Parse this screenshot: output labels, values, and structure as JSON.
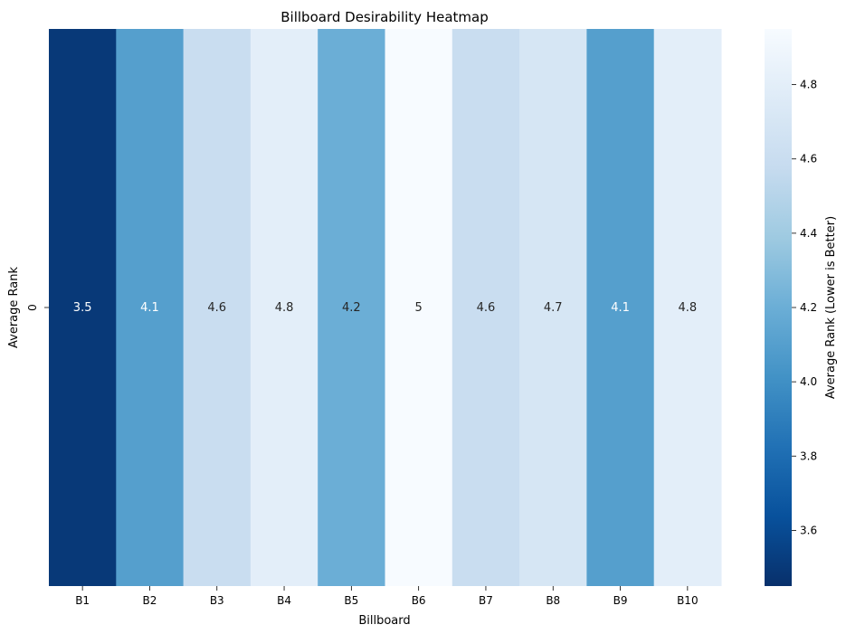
{
  "chart_data": {
    "type": "heatmap",
    "title": "Billboard Desirability Heatmap",
    "xlabel": "Billboard",
    "ylabel": "Average Rank",
    "categories": [
      "B1",
      "B2",
      "B3",
      "B4",
      "B5",
      "B6",
      "B7",
      "B8",
      "B9",
      "B10"
    ],
    "rows": [
      "0"
    ],
    "values": [
      3.5,
      4.1,
      4.6,
      4.8,
      4.2,
      5,
      4.6,
      4.7,
      4.1,
      4.8
    ],
    "colormap": "Blues_r",
    "colorbar": {
      "label": "Average Rank (Lower is Better)",
      "range": [
        3.45,
        4.95
      ],
      "ticks": [
        3.6,
        3.8,
        4.0,
        4.2,
        4.4,
        4.6,
        4.8
      ],
      "tick_labels": [
        "3.6",
        "3.8",
        "4.0",
        "4.2",
        "4.4",
        "4.6",
        "4.8"
      ]
    }
  }
}
